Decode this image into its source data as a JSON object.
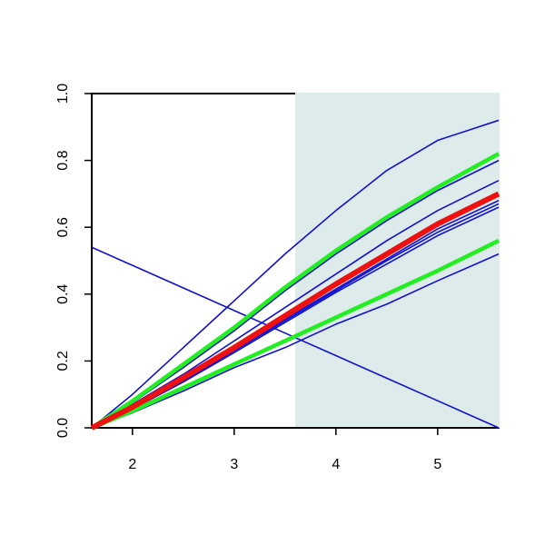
{
  "chart_data": {
    "type": "line",
    "x": [
      1.6,
      2.0,
      2.5,
      3.0,
      3.5,
      4.0,
      4.5,
      5.0,
      5.6
    ],
    "series": [
      {
        "color": "#1010d0",
        "width": 1.6,
        "values": [
          0.54,
          0.486,
          0.4185,
          0.351,
          0.2835,
          0.216,
          0.1485,
          0.081,
          0
        ]
      },
      {
        "color": "#1010d0",
        "width": 1.6,
        "values": [
          0,
          0.1,
          0.24,
          0.38,
          0.52,
          0.65,
          0.77,
          0.86,
          0.92
        ]
      },
      {
        "color": "#1010d0",
        "width": 1.6,
        "values": [
          0,
          0.075,
          0.18,
          0.29,
          0.41,
          0.52,
          0.62,
          0.71,
          0.8
        ]
      },
      {
        "color": "#1010d0",
        "width": 1.6,
        "values": [
          0,
          0.07,
          0.16,
          0.26,
          0.36,
          0.46,
          0.56,
          0.65,
          0.74
        ]
      },
      {
        "color": "#1010d0",
        "width": 1.6,
        "values": [
          0,
          0.06,
          0.145,
          0.235,
          0.325,
          0.415,
          0.505,
          0.595,
          0.68
        ]
      },
      {
        "color": "#1010d0",
        "width": 1.6,
        "values": [
          0,
          0.058,
          0.14,
          0.23,
          0.32,
          0.41,
          0.5,
          0.585,
          0.67
        ]
      },
      {
        "color": "#1010d0",
        "width": 1.6,
        "values": [
          0,
          0.056,
          0.137,
          0.225,
          0.315,
          0.405,
          0.49,
          0.575,
          0.66
        ]
      },
      {
        "color": "#1010d0",
        "width": 1.6,
        "values": [
          0,
          0.045,
          0.11,
          0.18,
          0.24,
          0.31,
          0.37,
          0.44,
          0.52
        ]
      },
      {
        "color": "#22ee22",
        "width": 4.5,
        "values": [
          0,
          0.08,
          0.19,
          0.3,
          0.42,
          0.53,
          0.63,
          0.72,
          0.82
        ]
      },
      {
        "color": "#22ee22",
        "width": 4.5,
        "values": [
          0,
          0.05,
          0.12,
          0.19,
          0.26,
          0.33,
          0.4,
          0.47,
          0.56
        ]
      },
      {
        "color": "#ee1111",
        "width": 6,
        "values": [
          0,
          0.062,
          0.15,
          0.24,
          0.335,
          0.43,
          0.52,
          0.61,
          0.7
        ]
      }
    ],
    "highlight_x": [
      3.6,
      5.6
    ],
    "highlight_color": "#deebeb",
    "xlim": [
      1.6,
      5.6
    ],
    "ylim": [
      0,
      1.0
    ],
    "xticks": [
      2,
      3,
      4,
      5
    ],
    "yticks": [
      {
        "value": 0,
        "label": "0.0"
      },
      {
        "value": 0.2,
        "label": "0.2"
      },
      {
        "value": 0.4,
        "label": "0.4"
      },
      {
        "value": 0.6,
        "label": "0.6"
      },
      {
        "value": 0.8,
        "label": "0.8"
      },
      {
        "value": 1.0,
        "label": "1.0"
      }
    ]
  }
}
